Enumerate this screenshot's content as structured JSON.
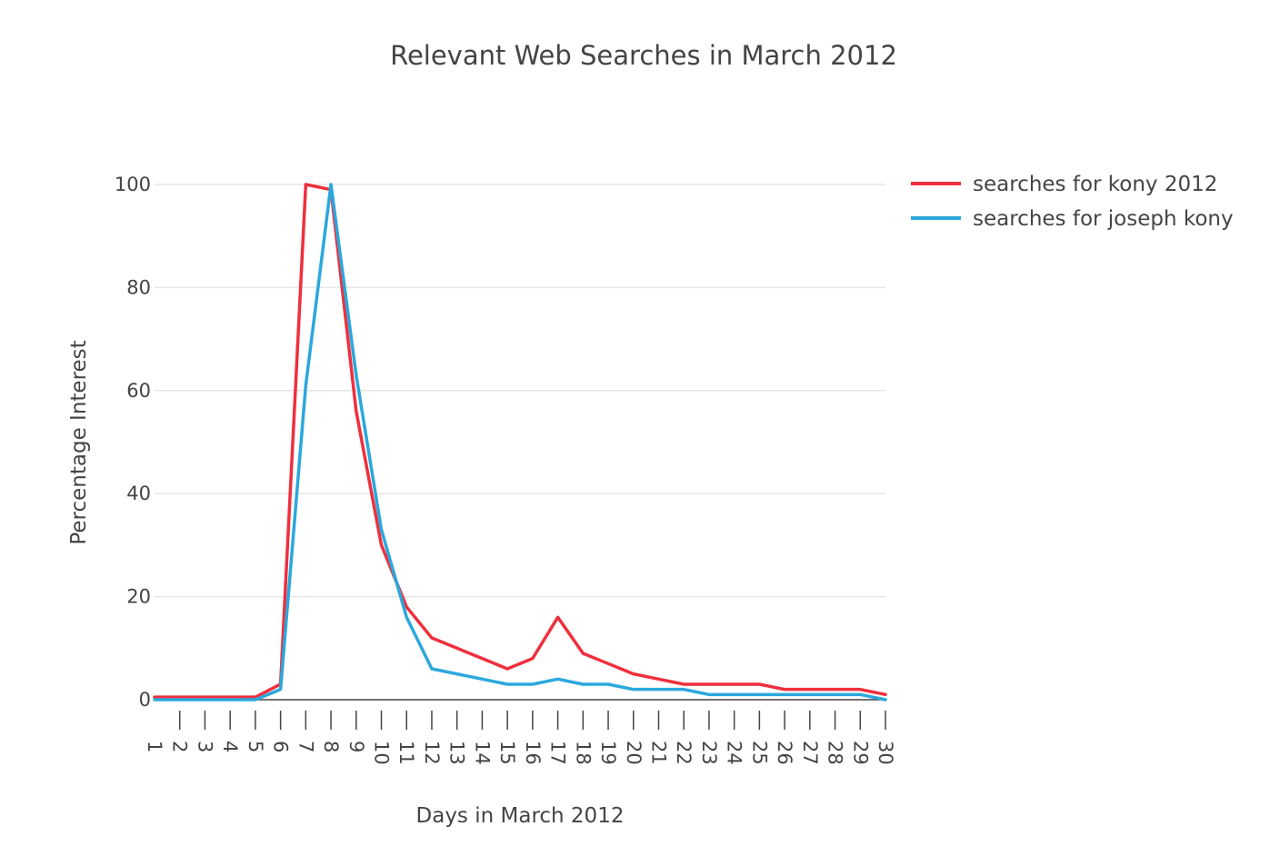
{
  "chart_data": {
    "type": "line",
    "title": "Relevant Web Searches in March 2012",
    "xlabel": "Days in March 2012",
    "ylabel": "Percentage Interest",
    "x": [
      1,
      2,
      3,
      4,
      5,
      6,
      7,
      8,
      9,
      10,
      11,
      12,
      13,
      14,
      15,
      16,
      17,
      18,
      19,
      20,
      21,
      22,
      23,
      24,
      25,
      26,
      27,
      28,
      29,
      30
    ],
    "x_tick_labels": [
      "1",
      "2",
      "3",
      "4",
      "5",
      "6",
      "7",
      "8",
      "9",
      "10",
      "11",
      "12",
      "13",
      "14",
      "15",
      "16",
      "17",
      "18",
      "19",
      "20",
      "21",
      "22",
      "23",
      "24",
      "25",
      "26",
      "27",
      "28",
      "29",
      "30"
    ],
    "y_ticks": [
      0,
      20,
      40,
      60,
      80,
      100
    ],
    "y_tick_labels": [
      "0",
      "20",
      "40",
      "60",
      "80",
      "100"
    ],
    "xlim": [
      1,
      30
    ],
    "ylim": [
      0,
      100
    ],
    "grid": "horizontal",
    "legend_position": "top-right",
    "series": [
      {
        "name": "searches for kony 2012",
        "color": "#f02f3d",
        "values": [
          0.5,
          0.5,
          0.5,
          0.5,
          0.5,
          3,
          100,
          99,
          56,
          30,
          18,
          12,
          10,
          8,
          6,
          8,
          16,
          9,
          7,
          5,
          4,
          3,
          3,
          3,
          3,
          2,
          2,
          2,
          2,
          1
        ]
      },
      {
        "name": "searches for joseph kony",
        "color": "#2ba8dc",
        "values": [
          0,
          0,
          0,
          0,
          0,
          2,
          61,
          100,
          63,
          33,
          16,
          6,
          5,
          4,
          3,
          3,
          4,
          3,
          3,
          2,
          2,
          2,
          1,
          1,
          1,
          1,
          1,
          1,
          1,
          0
        ]
      }
    ]
  }
}
